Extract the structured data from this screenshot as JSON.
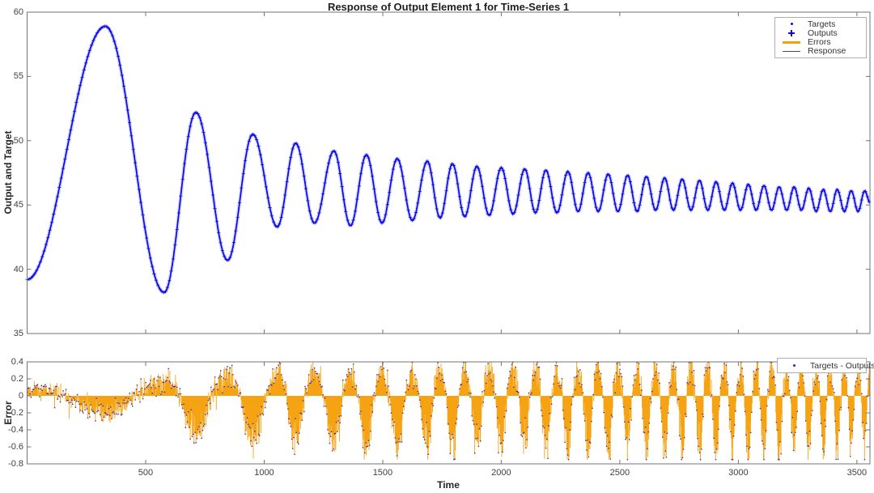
{
  "figure": {
    "background": "#ffffff"
  },
  "colors": {
    "targets_outputs_blue": "#0a0ae6",
    "blue_halo": "#9b9bf7",
    "errors_orange": "#f5a00b",
    "error_dots_blue": "#3526ad",
    "response_gray": "#4d4d4d",
    "axis_gray": "#737373",
    "tick_text": "#404040",
    "label_text": "#262626"
  },
  "chart_data": [
    {
      "type": "line",
      "title": "Response of Output Element 1 for Time-Series 1",
      "ylabel": "Output and Target",
      "xlabel": "",
      "xlim": [
        0,
        3555
      ],
      "ylim": [
        35,
        60
      ],
      "grid": false,
      "yticks": [
        35,
        40,
        45,
        50,
        55,
        60
      ],
      "ytick_labels": [
        "35",
        "40",
        "45",
        "50",
        "55",
        "60"
      ],
      "xticks": [
        500,
        1000,
        1500,
        2000,
        2500,
        3000,
        3500
      ],
      "xtick_labels_shown": false,
      "legend": {
        "position": "top-right",
        "entries": [
          {
            "label": "Targets",
            "marker": "dot",
            "color": "#0a0ae6"
          },
          {
            "label": "Outputs",
            "marker": "plus",
            "color": "#0a0ae6"
          },
          {
            "label": "Errors",
            "marker": "thick-line",
            "color": "#f5a00b"
          },
          {
            "label": "Response",
            "marker": "thin-line",
            "color": "#4d4d4d"
          }
        ]
      },
      "series_model": {
        "description": "Targets (dots) and Outputs (plus markers) coincide along one damped oscillation whose frequency increases with time; values read from plot as alternating extrema [time, value].",
        "extrema": [
          [
            0,
            39.2
          ],
          [
            330,
            58.9
          ],
          [
            578,
            38.2
          ],
          [
            712,
            52.2
          ],
          [
            846,
            40.7
          ],
          [
            952,
            50.5
          ],
          [
            1055,
            43.3
          ],
          [
            1133,
            49.8
          ],
          [
            1212,
            43.6
          ],
          [
            1294,
            49.2
          ],
          [
            1364,
            43.4
          ],
          [
            1431,
            48.9
          ],
          [
            1497,
            43.6
          ],
          [
            1561,
            48.6
          ],
          [
            1625,
            43.8
          ],
          [
            1688,
            48.4
          ],
          [
            1742,
            44.0
          ],
          [
            1794,
            48.2
          ],
          [
            1846,
            44.1
          ],
          [
            1897,
            48.0
          ],
          [
            1949,
            44.2
          ],
          [
            2000,
            47.9
          ],
          [
            2050,
            44.3
          ],
          [
            2099,
            47.8
          ],
          [
            2144,
            44.4
          ],
          [
            2188,
            47.7
          ],
          [
            2235,
            44.4
          ],
          [
            2281,
            47.6
          ],
          [
            2324,
            44.5
          ],
          [
            2366,
            47.5
          ],
          [
            2409,
            44.5
          ],
          [
            2451,
            47.4
          ],
          [
            2492,
            44.5
          ],
          [
            2533,
            47.3
          ],
          [
            2573,
            44.5
          ],
          [
            2612,
            47.2
          ],
          [
            2651,
            44.6
          ],
          [
            2689,
            47.1
          ],
          [
            2726,
            44.6
          ],
          [
            2763,
            47.0
          ],
          [
            2800,
            44.6
          ],
          [
            2836,
            46.9
          ],
          [
            2871,
            44.6
          ],
          [
            2906,
            46.8
          ],
          [
            2941,
            44.6
          ],
          [
            2975,
            46.7
          ],
          [
            3009,
            44.6
          ],
          [
            3042,
            46.6
          ],
          [
            3075,
            44.6
          ],
          [
            3108,
            46.5
          ],
          [
            3140,
            44.6
          ],
          [
            3172,
            46.4
          ],
          [
            3204,
            44.6
          ],
          [
            3235,
            46.4
          ],
          [
            3266,
            44.6
          ],
          [
            3297,
            46.3
          ],
          [
            3328,
            44.5
          ],
          [
            3358,
            46.2
          ],
          [
            3388,
            44.5
          ],
          [
            3417,
            46.2
          ],
          [
            3447,
            44.5
          ],
          [
            3476,
            46.1
          ],
          [
            3505,
            44.5
          ],
          [
            3533,
            46.1
          ],
          [
            3555,
            45.2
          ]
        ]
      }
    },
    {
      "type": "stem",
      "title": "",
      "ylabel": "Error",
      "xlabel": "Time",
      "xlim": [
        0,
        3555
      ],
      "ylim": [
        -0.8,
        0.4
      ],
      "grid": false,
      "yticks": [
        -0.8,
        -0.6,
        -0.4,
        -0.2,
        0,
        0.2,
        0.4
      ],
      "ytick_labels": [
        "-0.8",
        "-0.6",
        "-0.4",
        "-0.2",
        "0",
        "0.2",
        "0.4"
      ],
      "xticks": [
        500,
        1000,
        1500,
        2000,
        2500,
        3000,
        3500
      ],
      "xtick_labels": [
        "500",
        "1000",
        "1500",
        "2000",
        "2500",
        "3000",
        "3500"
      ],
      "xtick_labels_shown": true,
      "legend": {
        "position": "top-right",
        "entries": [
          {
            "label": "Targets - Outputs",
            "marker": "dot",
            "color": "#3526ad"
          }
        ]
      },
      "error_model": {
        "description": "Orange stems from zero with blue dots at each error value; noisy packets locked to the output oscillation (negative under output peaks, positive under troughs), growing from ~±0.18 early to about +0.39 / -0.72 late.",
        "envelope": [
          [
            0,
            0.16
          ],
          [
            400,
            0.19
          ],
          [
            650,
            0.38
          ],
          [
            900,
            0.46
          ],
          [
            1200,
            0.52
          ],
          [
            1600,
            0.55
          ],
          [
            2000,
            0.57
          ],
          [
            2400,
            0.6
          ],
          [
            2900,
            0.62
          ],
          [
            3555,
            0.6
          ]
        ],
        "pos_scale": 0.55,
        "neg_scale": 1.05,
        "noise_base": 0.06,
        "noise_env_scale": 0.1,
        "observed_range": [
          -0.72,
          0.39
        ]
      }
    }
  ]
}
